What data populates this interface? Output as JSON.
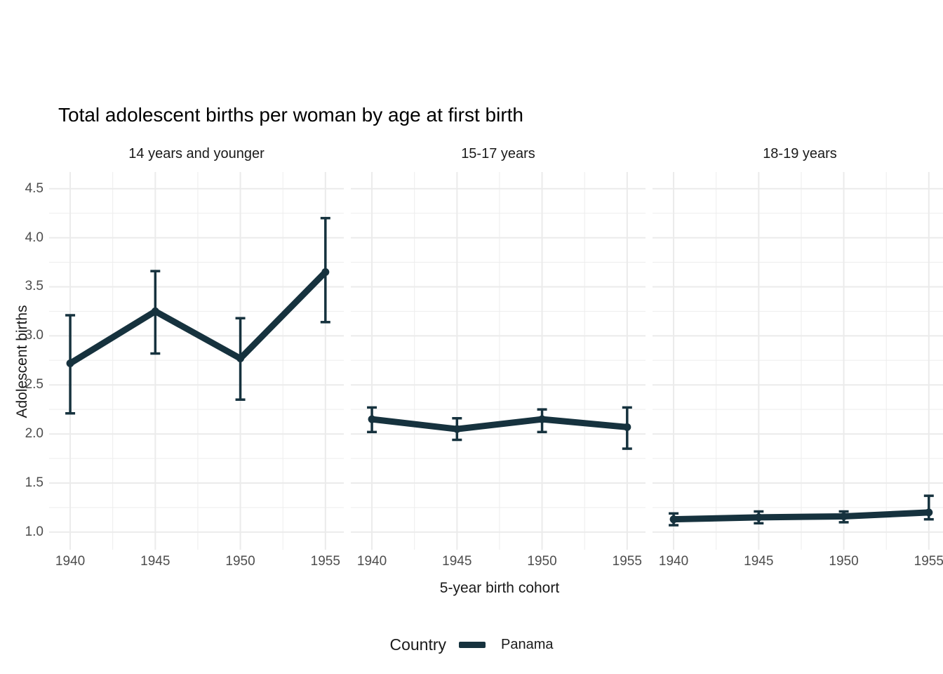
{
  "page": {
    "background": "#ffffff"
  },
  "colors": {
    "series": "#16323e",
    "grid_major": "#ebebeb",
    "grid_minor": "#ededed",
    "tick_text": "#4d4d4d",
    "text": "#1a1a1a"
  },
  "chart_data": {
    "type": "line",
    "title": "Total adolescent births per woman by age at first birth",
    "xlabel": "5-year birth cohort",
    "ylabel": "Adolescent births",
    "legend": {
      "title": "Country",
      "position": "bottom",
      "entries": [
        {
          "label": "Panama",
          "color": "#16323e"
        }
      ]
    },
    "x_ticks": [
      1940,
      1945,
      1950,
      1955
    ],
    "x_minor_ticks": [
      1942.5,
      1947.5,
      1952.5
    ],
    "y_ticks": [
      1.0,
      1.5,
      2.0,
      2.5,
      3.0,
      3.5,
      4.0,
      4.5
    ],
    "y_minor_ticks": [
      1.25,
      1.75,
      2.25,
      2.75,
      3.25,
      3.75,
      4.25
    ],
    "xlim": [
      1938.76,
      1956.08
    ],
    "ylim": [
      0.82,
      4.67
    ],
    "grid": "major+minor, no panel border",
    "series_name": "Panama",
    "facets": [
      {
        "label": "14 years and younger",
        "points": [
          {
            "x": 1940,
            "y": 2.72,
            "lo": 2.21,
            "hi": 3.21
          },
          {
            "x": 1945,
            "y": 3.25,
            "lo": 2.82,
            "hi": 3.66
          },
          {
            "x": 1950,
            "y": 2.77,
            "lo": 2.35,
            "hi": 3.18
          },
          {
            "x": 1955,
            "y": 3.65,
            "lo": 3.14,
            "hi": 4.2
          }
        ]
      },
      {
        "label": "15-17 years",
        "points": [
          {
            "x": 1940,
            "y": 2.15,
            "lo": 2.02,
            "hi": 2.27
          },
          {
            "x": 1945,
            "y": 2.05,
            "lo": 1.94,
            "hi": 2.16
          },
          {
            "x": 1950,
            "y": 2.15,
            "lo": 2.02,
            "hi": 2.25
          },
          {
            "x": 1955,
            "y": 2.07,
            "lo": 1.85,
            "hi": 2.27
          }
        ]
      },
      {
        "label": "18-19 years",
        "points": [
          {
            "x": 1940,
            "y": 1.13,
            "lo": 1.07,
            "hi": 1.19
          },
          {
            "x": 1945,
            "y": 1.15,
            "lo": 1.09,
            "hi": 1.21
          },
          {
            "x": 1950,
            "y": 1.16,
            "lo": 1.1,
            "hi": 1.21
          },
          {
            "x": 1955,
            "y": 1.2,
            "lo": 1.13,
            "hi": 1.37
          }
        ]
      }
    ]
  }
}
